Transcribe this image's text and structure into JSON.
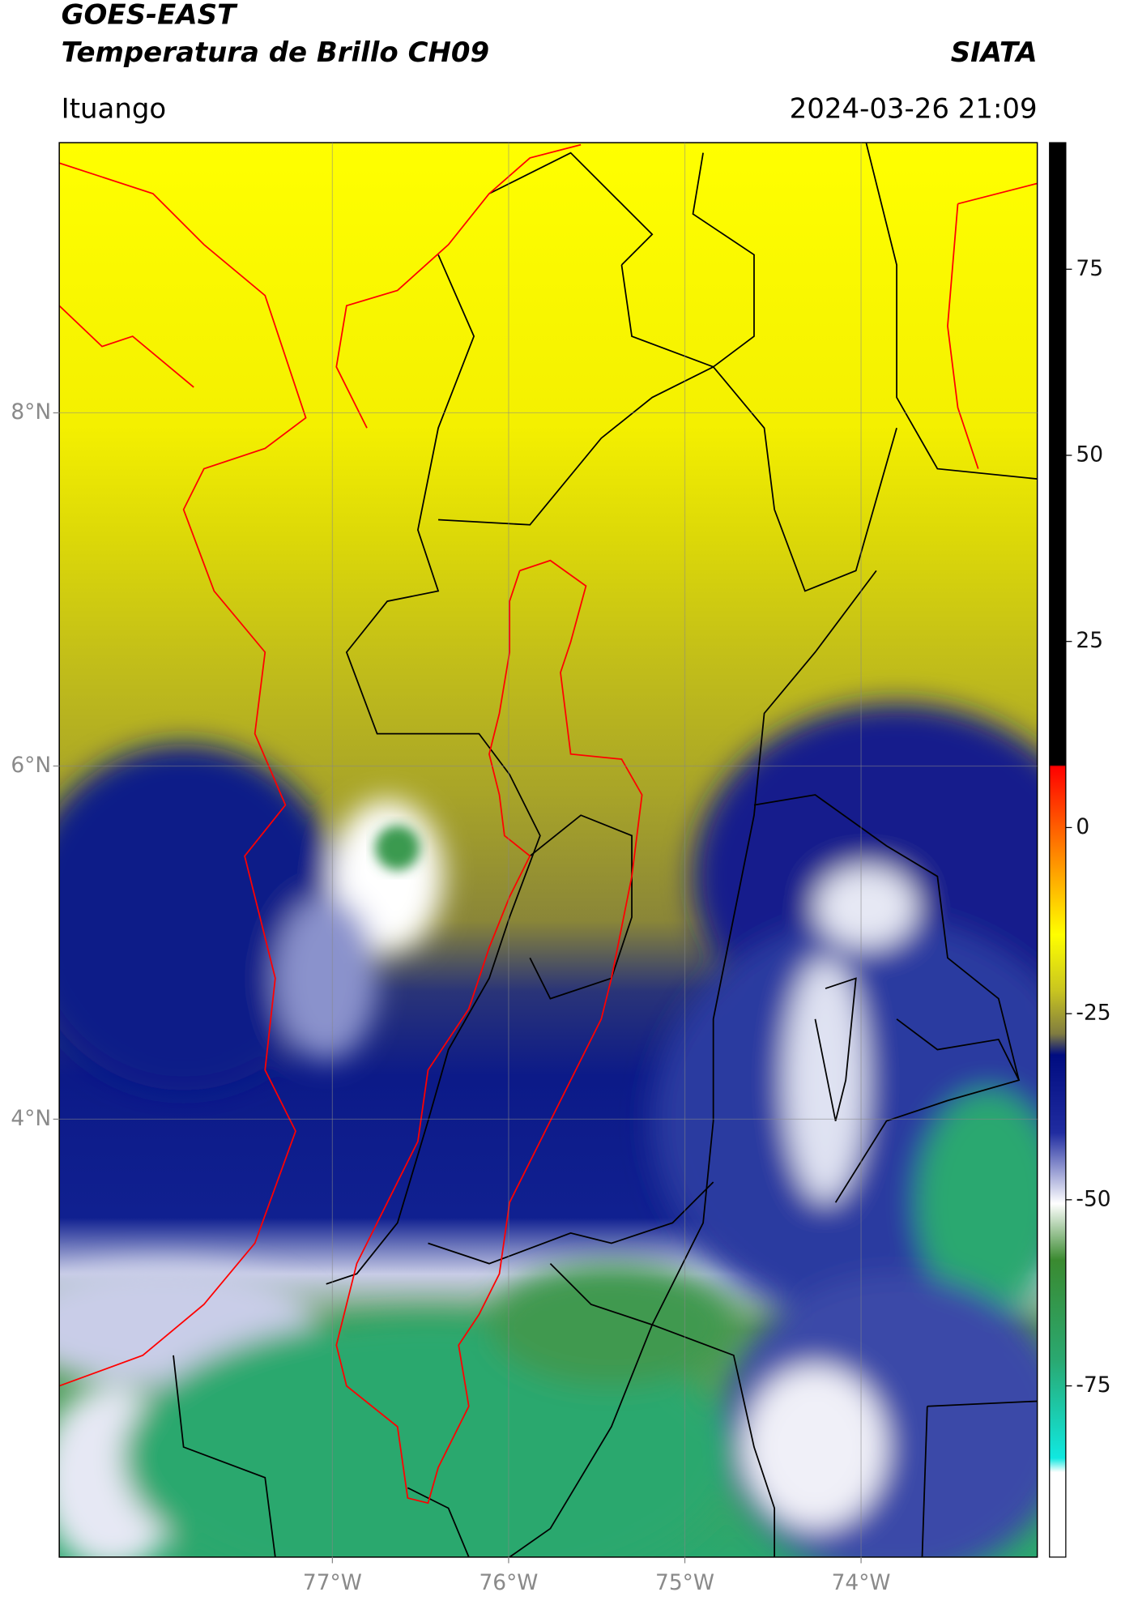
{
  "map": {
    "title": "GOES-EAST",
    "subtitle": "Temperatura de Brillo CH09",
    "source": "SIATA",
    "region": "Ituango",
    "datetime": "2024-03-26 21:09",
    "xlim": [
      -78.55,
      -73.0
    ],
    "ylim": [
      1.52,
      9.53
    ],
    "xticks": [
      {
        "value": -77,
        "label": "77°W"
      },
      {
        "value": -76,
        "label": "76°W"
      },
      {
        "value": -75,
        "label": "75°W"
      },
      {
        "value": -74,
        "label": "74°W"
      }
    ],
    "yticks": [
      {
        "value": 8,
        "label": "8°N"
      },
      {
        "value": 6,
        "label": "6°N"
      },
      {
        "value": 4,
        "label": "4°N"
      }
    ],
    "grid": true,
    "colorbar": {
      "lim": [
        -98,
        92
      ],
      "ticks": [
        75,
        50,
        25,
        0,
        -25,
        -50,
        -75
      ]
    }
  }
}
